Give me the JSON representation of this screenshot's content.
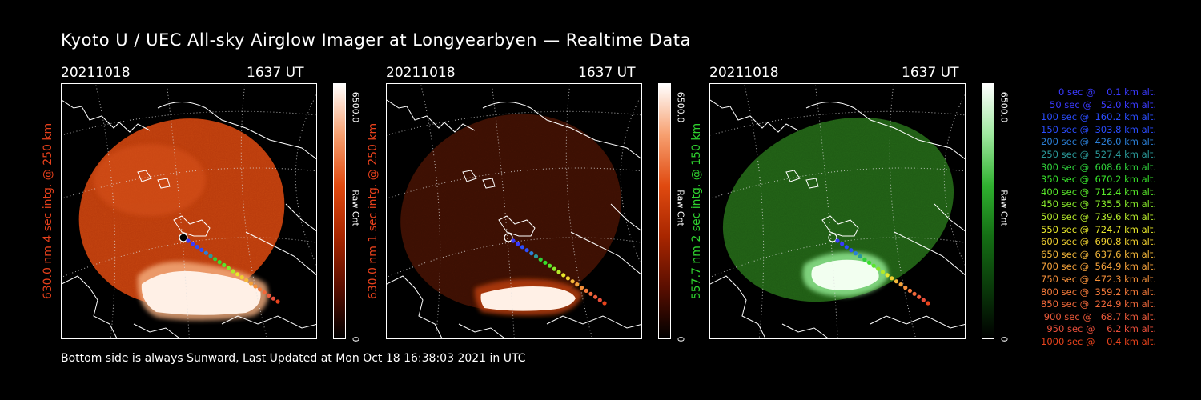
{
  "title": "Kyoto U / UEC All-sky Airglow Imager at Longyearbyen — Realtime Data",
  "footer": "Bottom side is always Sunward, Last Updated at Mon Oct 18 16:38:03 2021 in UTC",
  "colors": {
    "red_channel": "#e8411c",
    "green_channel": "#2fd22f",
    "background": "#000000"
  },
  "panels": [
    {
      "date": "20211018",
      "time": "1637 UT",
      "ylabel": "630.0 nm  4 sec intg. @ 250 km",
      "label_color": "#e8411c",
      "colorbar_max": "6500.0",
      "colorbar_unit": "Raw Cnt",
      "colorbar_min": "0",
      "colormap": "red",
      "brightness": "bright"
    },
    {
      "date": "20211018",
      "time": "1637 UT",
      "ylabel": "630.0 nm  1 sec intg. @ 250 km",
      "label_color": "#e8411c",
      "colorbar_max": "6500.0",
      "colorbar_unit": "Raw Cnt",
      "colorbar_min": "0",
      "colormap": "red",
      "brightness": "dim"
    },
    {
      "date": "20211018",
      "time": "1637 UT",
      "ylabel": "557.7 nm  2 sec intg. @ 150 km",
      "label_color": "#2fd22f",
      "colorbar_max": "6500.0",
      "colorbar_unit": "Raw Cnt",
      "colorbar_min": "0",
      "colormap": "green",
      "brightness": "dim"
    }
  ],
  "legend": [
    {
      "text": "  0 sec @    0.1 km alt.",
      "color": "#3a3aff"
    },
    {
      "text": " 50 sec @   52.0 km alt.",
      "color": "#3a3aff"
    },
    {
      "text": "100 sec @  160.2 km alt.",
      "color": "#2a4dff"
    },
    {
      "text": "150 sec @  303.8 km alt.",
      "color": "#2a4dff"
    },
    {
      "text": "200 sec @  426.0 km alt.",
      "color": "#2b7fd6"
    },
    {
      "text": "250 sec @  527.4 km alt.",
      "color": "#2a9a9a"
    },
    {
      "text": "300 sec @  608.6 km alt.",
      "color": "#2fcf3a"
    },
    {
      "text": "350 sec @  670.2 km alt.",
      "color": "#37e02a"
    },
    {
      "text": "400 sec @  712.4 km alt.",
      "color": "#58e62a"
    },
    {
      "text": "450 sec @  735.5 km alt.",
      "color": "#86e82a"
    },
    {
      "text": "500 sec @  739.6 km alt.",
      "color": "#b5ea2a"
    },
    {
      "text": "550 sec @  724.7 km alt.",
      "color": "#e8e82a"
    },
    {
      "text": "600 sec @  690.8 km alt.",
      "color": "#f0d030"
    },
    {
      "text": "650 sec @  637.6 km alt.",
      "color": "#f5b83a"
    },
    {
      "text": "700 sec @  564.9 km alt.",
      "color": "#f5a23a"
    },
    {
      "text": "750 sec @  472.3 km alt.",
      "color": "#f5903a"
    },
    {
      "text": "800 sec @  359.2 km alt.",
      "color": "#f57a3a"
    },
    {
      "text": "850 sec @  224.9 km alt.",
      "color": "#f0683a"
    },
    {
      "text": "900 sec @   68.7 km alt.",
      "color": "#ec5a3a"
    },
    {
      "text": "950 sec @    6.2 km alt.",
      "color": "#e84e3a"
    },
    {
      "text": "1000 sec @    0.4 km alt.",
      "color": "#e8431c"
    }
  ]
}
